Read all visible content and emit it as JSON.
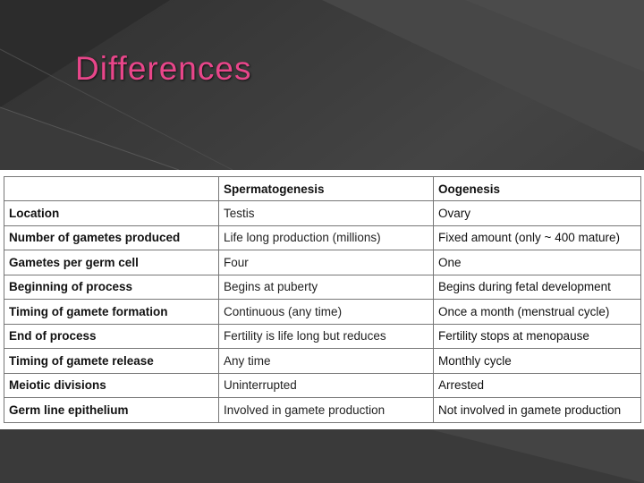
{
  "slide": {
    "title": "Differences"
  },
  "table": {
    "headers": [
      "",
      "Spermatogenesis",
      "Oogenesis"
    ],
    "rows": [
      {
        "label": "Location",
        "spermatogenesis": "Testis",
        "oogenesis": "Ovary"
      },
      {
        "label": "Number of gametes produced",
        "spermatogenesis": "Life long production (millions)",
        "oogenesis": "Fixed amount (only ~ 400 mature)"
      },
      {
        "label": "Gametes per germ cell",
        "spermatogenesis": "Four",
        "oogenesis": "One"
      },
      {
        "label": "Beginning of process",
        "spermatogenesis": "Begins at puberty",
        "oogenesis": "Begins during fetal development"
      },
      {
        "label": "Timing of gamete formation",
        "spermatogenesis": "Continuous (any time)",
        "oogenesis": "Once a month (menstrual cycle)"
      },
      {
        "label": "End of process",
        "spermatogenesis": "Fertility is life long but reduces",
        "oogenesis": "Fertility stops at menopause"
      },
      {
        "label": "Timing of gamete release",
        "spermatogenesis": "Any time",
        "oogenesis": "Monthly cycle"
      },
      {
        "label": "Meiotic divisions",
        "spermatogenesis": "Uninterrupted",
        "oogenesis": "Arrested"
      },
      {
        "label": "Germ line epithelium",
        "spermatogenesis": "Involved in gamete production",
        "oogenesis": "Not involved in gamete production"
      }
    ]
  },
  "colors": {
    "background": "#3d3d3d",
    "title": "#e8468a",
    "table_background": "#ffffff",
    "table_border": "#777777"
  }
}
